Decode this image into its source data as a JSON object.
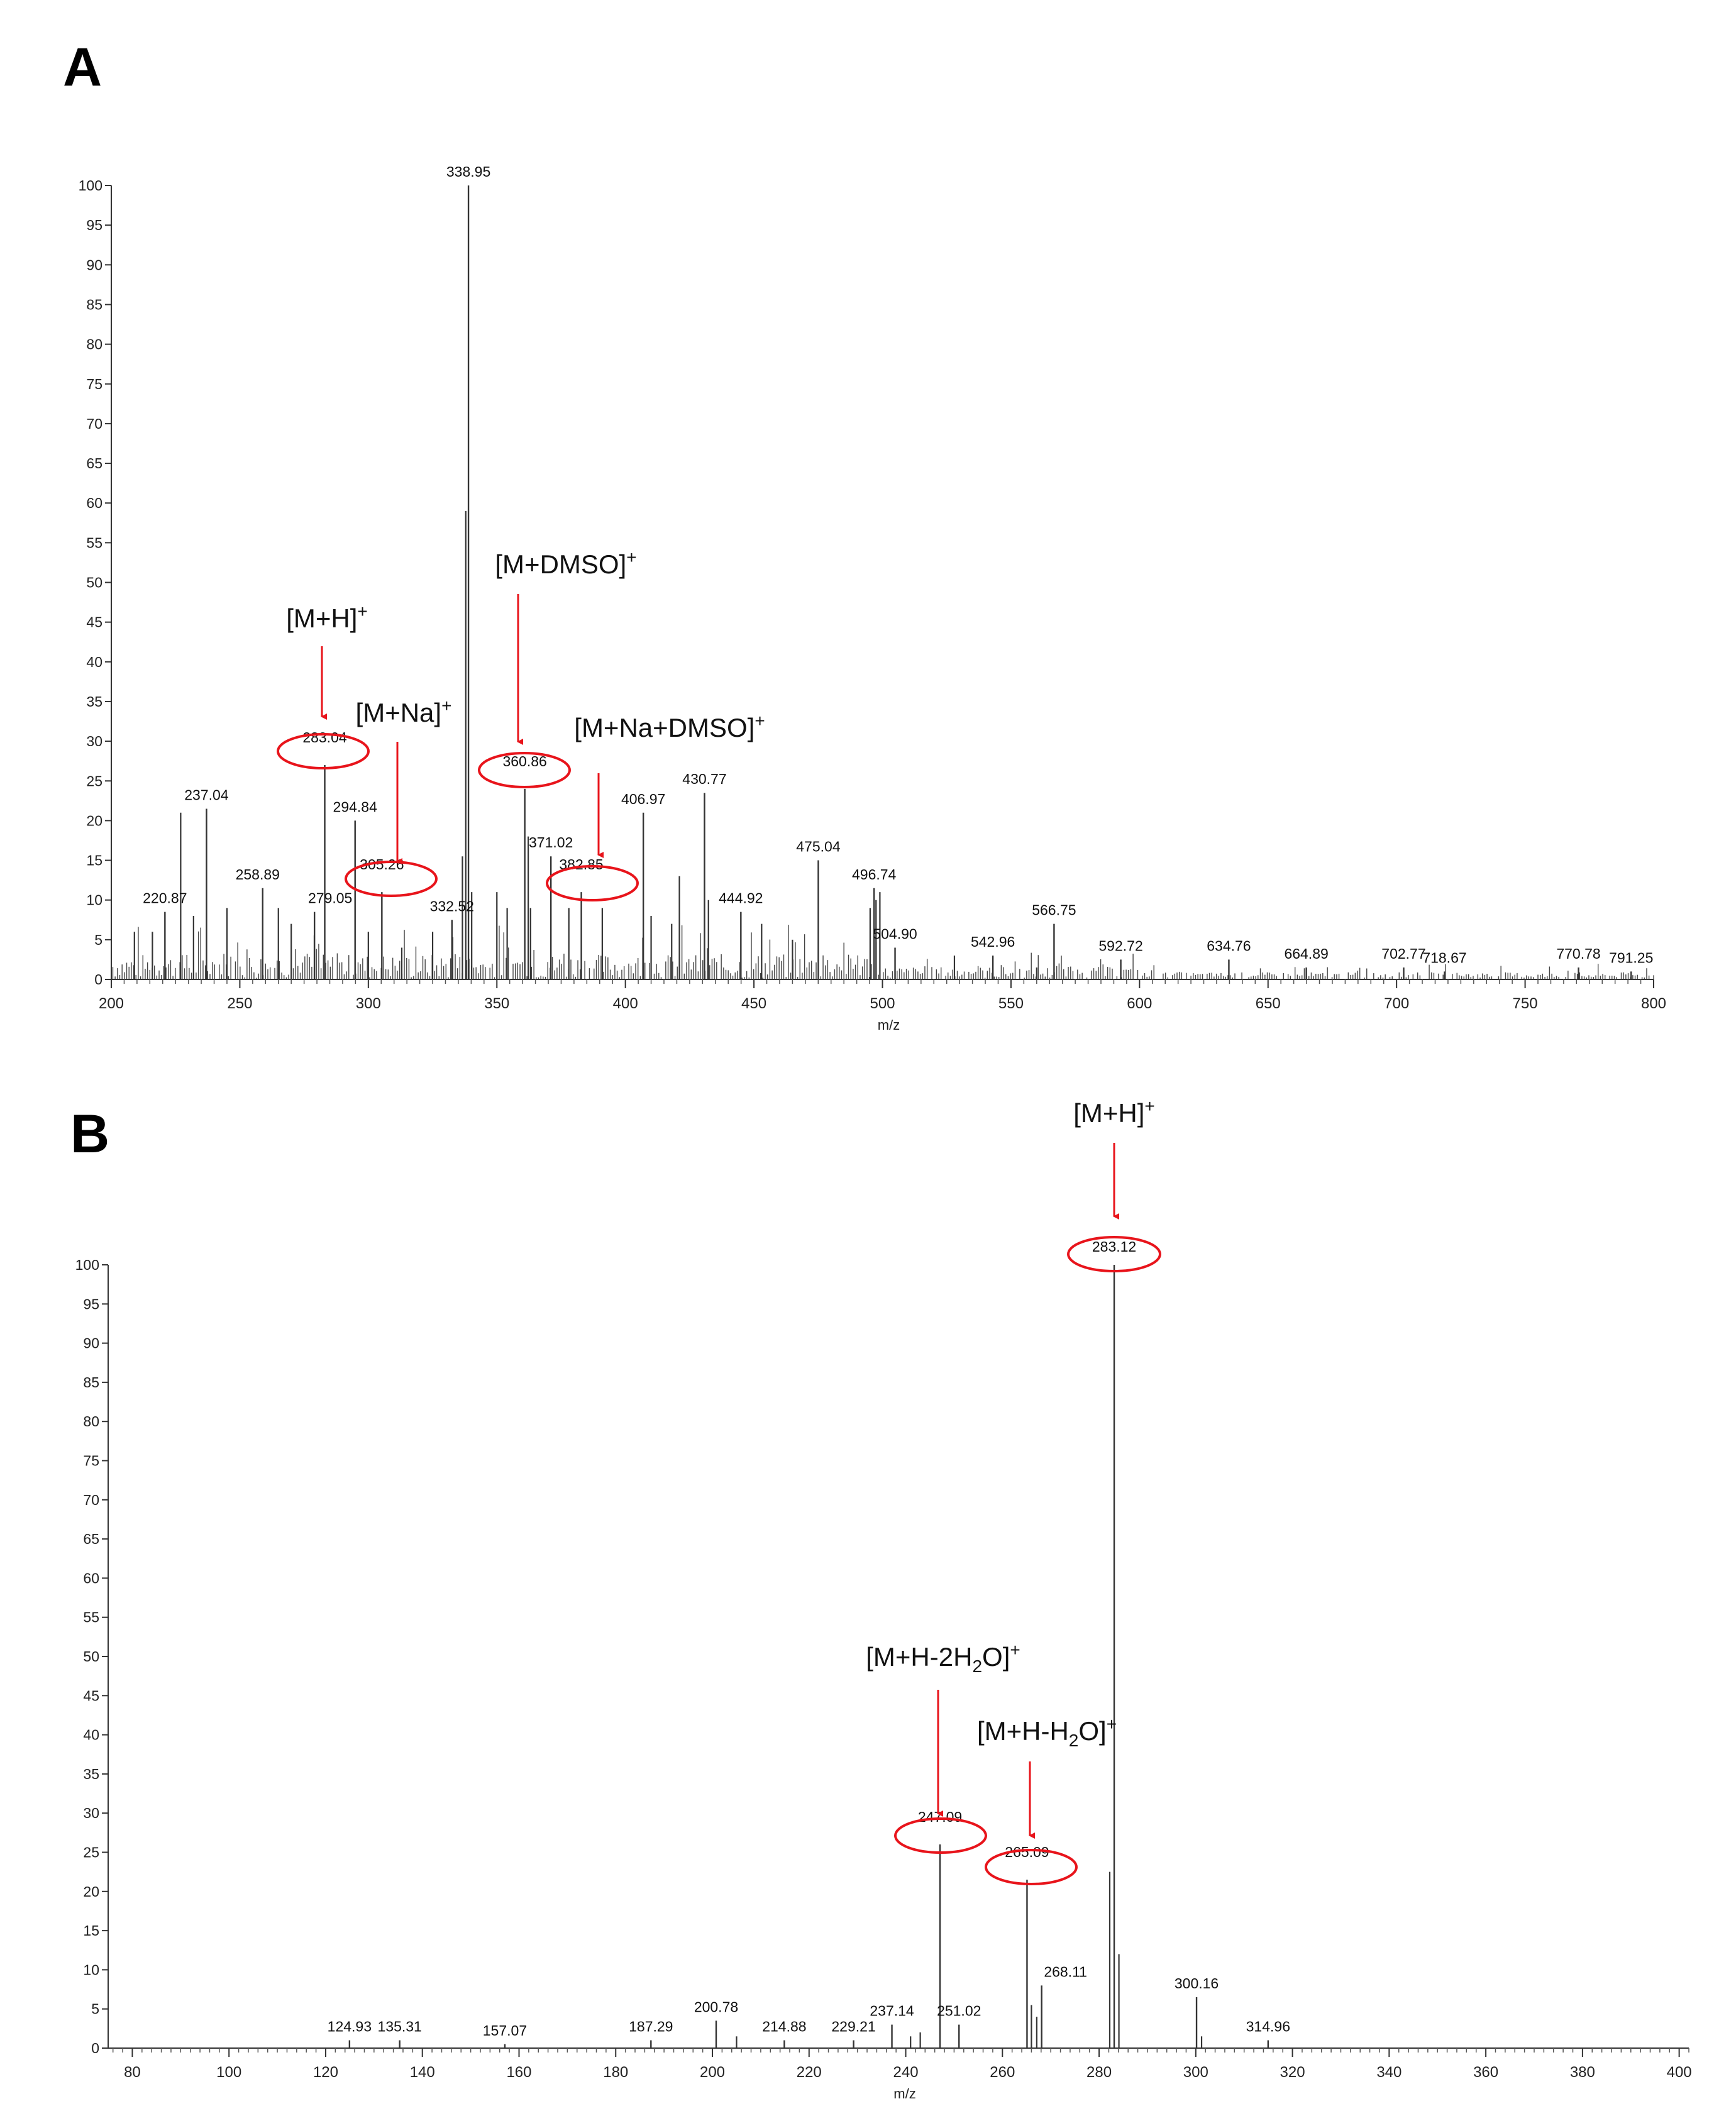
{
  "chart_data": [
    {
      "panel": "A",
      "type": "bar",
      "xlabel": "m/z",
      "ylabel": "",
      "xlim": [
        200,
        800
      ],
      "ylim": [
        0,
        100
      ],
      "x_ticks": [
        200,
        250,
        300,
        350,
        400,
        450,
        500,
        550,
        600,
        650,
        700,
        750,
        800
      ],
      "y_ticks": [
        0,
        5,
        10,
        15,
        20,
        25,
        30,
        35,
        40,
        45,
        50,
        55,
        60,
        65,
        70,
        75,
        80,
        85,
        90,
        95,
        100
      ],
      "labeled_peaks": [
        {
          "mz": 338.95,
          "intensity": 100,
          "label": "338.95"
        },
        {
          "mz": 283.04,
          "intensity": 27,
          "label": "283.04",
          "circled": true
        },
        {
          "mz": 305.26,
          "intensity": 11,
          "label": "305.26",
          "circled": true
        },
        {
          "mz": 360.86,
          "intensity": 24,
          "label": "360.86",
          "circled": true
        },
        {
          "mz": 382.85,
          "intensity": 11,
          "label": "382.85",
          "circled": true
        },
        {
          "mz": 237.04,
          "intensity": 21.5,
          "label": "237.04"
        },
        {
          "mz": 294.84,
          "intensity": 20,
          "label": "294.84"
        },
        {
          "mz": 258.89,
          "intensity": 11.5,
          "label": "258.89"
        },
        {
          "mz": 279.05,
          "intensity": 8.5,
          "label": "279.05"
        },
        {
          "mz": 220.87,
          "intensity": 8.5,
          "label": "220.87"
        },
        {
          "mz": 332.52,
          "intensity": 7.5,
          "label": "332.52"
        },
        {
          "mz": 371.02,
          "intensity": 15.5,
          "label": "371.02"
        },
        {
          "mz": 406.97,
          "intensity": 21,
          "label": "406.97"
        },
        {
          "mz": 430.77,
          "intensity": 23.5,
          "label": "430.77"
        },
        {
          "mz": 444.92,
          "intensity": 8.5,
          "label": "444.92"
        },
        {
          "mz": 475.04,
          "intensity": 15,
          "label": "475.04"
        },
        {
          "mz": 496.74,
          "intensity": 11.5,
          "label": "496.74"
        },
        {
          "mz": 504.9,
          "intensity": 4,
          "label": "504.90"
        },
        {
          "mz": 542.96,
          "intensity": 3,
          "label": "542.96"
        },
        {
          "mz": 566.75,
          "intensity": 7,
          "label": "566.75"
        },
        {
          "mz": 592.72,
          "intensity": 2.5,
          "label": "592.72"
        },
        {
          "mz": 634.76,
          "intensity": 2.5,
          "label": "634.76"
        },
        {
          "mz": 664.89,
          "intensity": 1.5,
          "label": "664.89"
        },
        {
          "mz": 702.77,
          "intensity": 1.5,
          "label": "702.77"
        },
        {
          "mz": 718.67,
          "intensity": 1,
          "label": "718.67"
        },
        {
          "mz": 770.78,
          "intensity": 1.5,
          "label": "770.78"
        },
        {
          "mz": 791.25,
          "intensity": 1,
          "label": "791.25"
        }
      ],
      "unlabeled_peaks": [
        {
          "mz": 337.9,
          "intensity": 59
        },
        {
          "mz": 336.6,
          "intensity": 15.5
        },
        {
          "mz": 340.2,
          "intensity": 11
        },
        {
          "mz": 227.0,
          "intensity": 21
        },
        {
          "mz": 362.2,
          "intensity": 18
        },
        {
          "mz": 363.1,
          "intensity": 9
        },
        {
          "mz": 421.0,
          "intensity": 13
        },
        {
          "mz": 432.3,
          "intensity": 10
        },
        {
          "mz": 499.0,
          "intensity": 11
        },
        {
          "mz": 497.5,
          "intensity": 10
        },
        {
          "mz": 495.2,
          "intensity": 9
        },
        {
          "mz": 265.0,
          "intensity": 9
        },
        {
          "mz": 245.0,
          "intensity": 9
        },
        {
          "mz": 232.0,
          "intensity": 8
        },
        {
          "mz": 350.0,
          "intensity": 11
        },
        {
          "mz": 354.0,
          "intensity": 9
        },
        {
          "mz": 378.0,
          "intensity": 9
        },
        {
          "mz": 391.0,
          "intensity": 9
        },
        {
          "mz": 410.0,
          "intensity": 8
        },
        {
          "mz": 453.0,
          "intensity": 7
        },
        {
          "mz": 465.0,
          "intensity": 5
        },
        {
          "mz": 209.0,
          "intensity": 6
        },
        {
          "mz": 216.0,
          "intensity": 6
        },
        {
          "mz": 325.0,
          "intensity": 6
        },
        {
          "mz": 270.0,
          "intensity": 7
        },
        {
          "mz": 300.0,
          "intensity": 6
        },
        {
          "mz": 313.0,
          "intensity": 4
        },
        {
          "mz": 418.0,
          "intensity": 7
        },
        {
          "mz": 528.0,
          "intensity": 3
        },
        {
          "mz": 560.0,
          "intensity": 1.5
        }
      ],
      "annotations": [
        {
          "text": "[M+H]",
          "sup": "+",
          "target": "283.04"
        },
        {
          "text": "[M+Na]",
          "sup": "+",
          "target": "305.26"
        },
        {
          "text": "[M+DMSO]",
          "sup": "+",
          "target": "360.86"
        },
        {
          "text": "[M+Na+DMSO]",
          "sup": "+",
          "target": "382.85"
        }
      ],
      "accent_color": "#e8141b"
    },
    {
      "panel": "B",
      "type": "bar",
      "xlabel": "m/z",
      "ylabel": "",
      "xlim": [
        75,
        402
      ],
      "ylim": [
        0,
        100
      ],
      "x_ticks": [
        80,
        100,
        120,
        140,
        160,
        180,
        200,
        220,
        240,
        260,
        280,
        300,
        320,
        340,
        360,
        380,
        400
      ],
      "y_ticks": [
        0,
        5,
        10,
        15,
        20,
        25,
        30,
        35,
        40,
        45,
        50,
        55,
        60,
        65,
        70,
        75,
        80,
        85,
        90,
        95,
        100
      ],
      "labeled_peaks": [
        {
          "mz": 283.12,
          "intensity": 100,
          "label": "283.12",
          "circled": true
        },
        {
          "mz": 247.09,
          "intensity": 26,
          "label": "247.09",
          "circled": true
        },
        {
          "mz": 265.09,
          "intensity": 21.5,
          "label": "265.09",
          "circled": true
        },
        {
          "mz": 268.11,
          "intensity": 8,
          "label": "268.11"
        },
        {
          "mz": 300.16,
          "intensity": 6.5,
          "label": "300.16"
        },
        {
          "mz": 314.96,
          "intensity": 1,
          "label": "314.96"
        },
        {
          "mz": 251.02,
          "intensity": 3,
          "label": "251.02"
        },
        {
          "mz": 237.14,
          "intensity": 3,
          "label": "237.14"
        },
        {
          "mz": 229.21,
          "intensity": 1,
          "label": "229.21"
        },
        {
          "mz": 214.88,
          "intensity": 1,
          "label": "214.88"
        },
        {
          "mz": 200.78,
          "intensity": 3.5,
          "label": "200.78"
        },
        {
          "mz": 187.29,
          "intensity": 1,
          "label": "187.29"
        },
        {
          "mz": 157.07,
          "intensity": 0.5,
          "label": "157.07"
        },
        {
          "mz": 135.31,
          "intensity": 1,
          "label": "135.31"
        },
        {
          "mz": 124.93,
          "intensity": 1,
          "label": "124.93"
        }
      ],
      "unlabeled_peaks": [
        {
          "mz": 282.2,
          "intensity": 22.5
        },
        {
          "mz": 284.1,
          "intensity": 12
        },
        {
          "mz": 266.0,
          "intensity": 5.5
        },
        {
          "mz": 267.1,
          "intensity": 4
        },
        {
          "mz": 241.0,
          "intensity": 1.5
        },
        {
          "mz": 243.0,
          "intensity": 2
        },
        {
          "mz": 205.0,
          "intensity": 1.5
        },
        {
          "mz": 301.2,
          "intensity": 1.5
        }
      ],
      "annotations": [
        {
          "text": "[M+H]",
          "sup": "+",
          "target": "283.12"
        },
        {
          "text": "[M+H-2H",
          "sub": "2",
          "after": "O]",
          "sup": "+",
          "target": "247.09"
        },
        {
          "text": "[M+H-H",
          "sub": "2",
          "after": "O]",
          "sup": "+",
          "target": "265.09"
        }
      ],
      "accent_color": "#e8141b"
    }
  ],
  "panel_labels": [
    "A",
    "B"
  ]
}
